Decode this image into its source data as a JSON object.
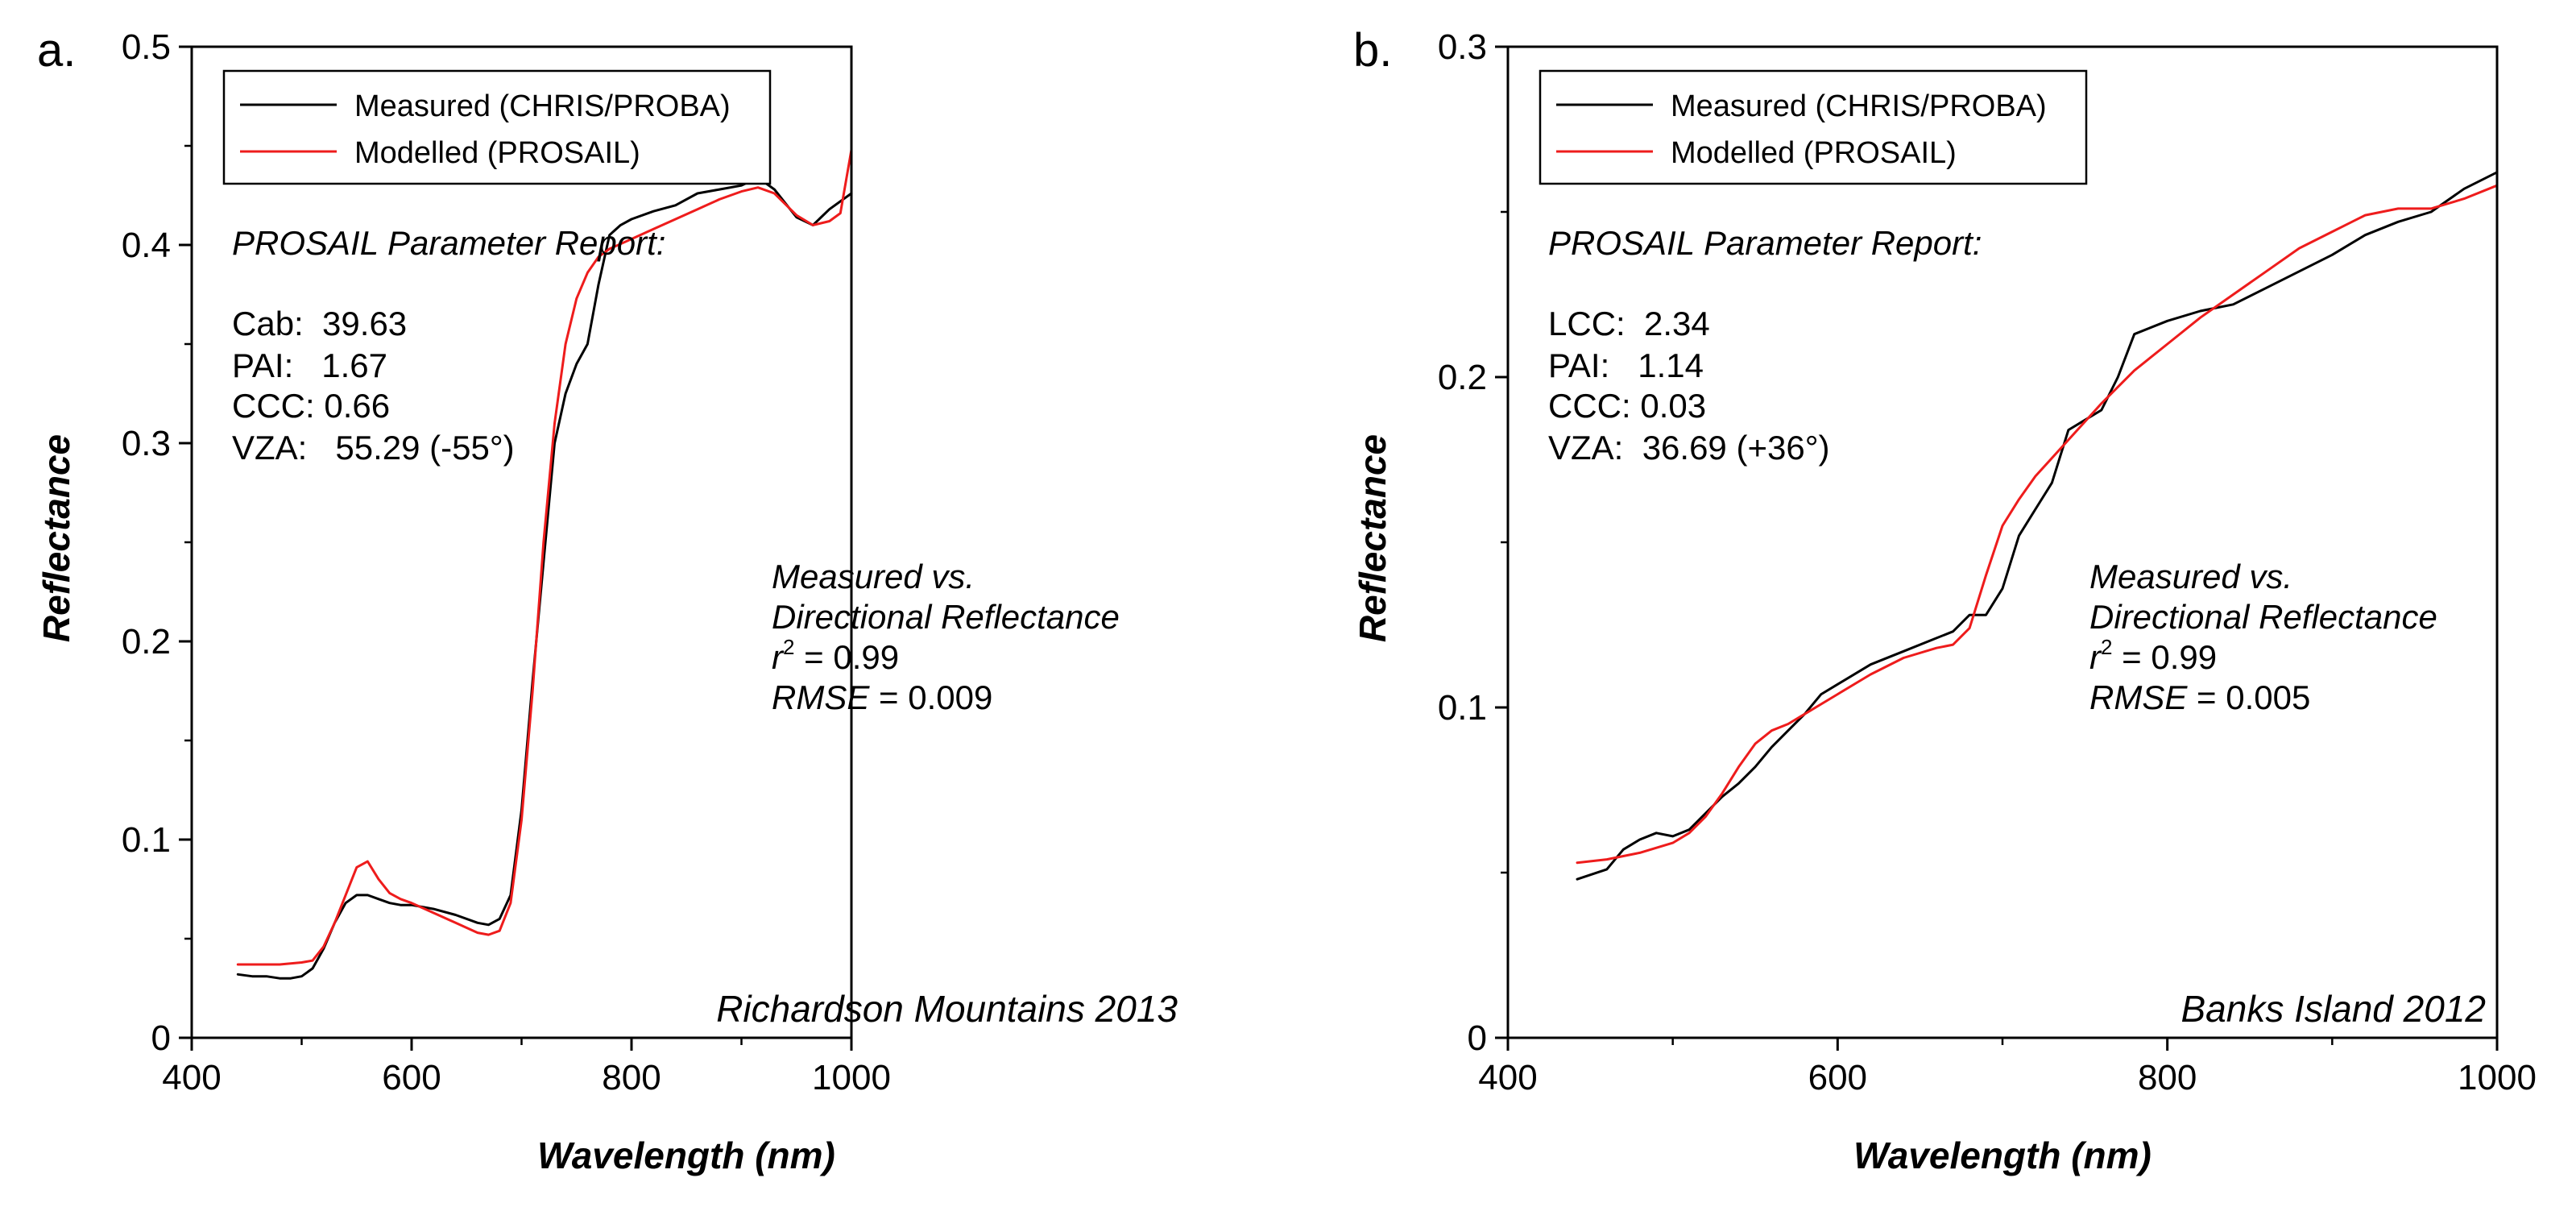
{
  "chart_data": [
    {
      "type": "line",
      "panel": "a.",
      "xlabel": "Wavelength (nm)",
      "ylabel": "Reflectance",
      "xlim": [
        400,
        1000
      ],
      "ylim": [
        0,
        0.5
      ],
      "xticks": [
        "400",
        "600",
        "800",
        "1000"
      ],
      "yticks": [
        "0",
        "0.1",
        "0.2",
        "0.3",
        "0.4",
        "0.5"
      ],
      "legend": [
        "Measured (CHRIS/PROBA)",
        "Modelled (PROSAIL)"
      ],
      "legend_position": "top-left",
      "report": {
        "title": "PROSAIL Parameter Report:",
        "lines": [
          "Cab:  39.63",
          "PAI:   1.67",
          "CCC: 0.66",
          "VZA:   55.29 (-55°)"
        ]
      },
      "stats": {
        "line1": "Measured vs.",
        "line2": "Directional Reflectance",
        "r2_label": "r",
        "r2_sup": "2",
        "r2_value": " = 0.99",
        "rmse_label": "RMSE",
        "rmse_value": " = 0.009"
      },
      "site": "Richardson Mountains 2013",
      "series": [
        {
          "name": "Measured (CHRIS/PROBA)",
          "color": "#000000",
          "x": [
            442,
            455,
            468,
            480,
            490,
            500,
            510,
            520,
            530,
            540,
            550,
            560,
            570,
            580,
            590,
            600,
            620,
            640,
            660,
            670,
            680,
            690,
            700,
            710,
            720,
            730,
            740,
            750,
            760,
            770,
            780,
            790,
            800,
            820,
            840,
            860,
            880,
            900,
            915,
            930,
            950,
            965,
            980,
            1000
          ],
          "values": [
            0.032,
            0.031,
            0.031,
            0.03,
            0.03,
            0.031,
            0.035,
            0.045,
            0.058,
            0.068,
            0.072,
            0.072,
            0.07,
            0.068,
            0.067,
            0.067,
            0.065,
            0.062,
            0.058,
            0.057,
            0.06,
            0.072,
            0.115,
            0.18,
            0.24,
            0.3,
            0.325,
            0.34,
            0.35,
            0.38,
            0.405,
            0.41,
            0.413,
            0.417,
            0.42,
            0.426,
            0.428,
            0.43,
            0.434,
            0.428,
            0.414,
            0.41,
            0.418,
            0.426
          ]
        },
        {
          "name": "Modelled (PROSAIL)",
          "color": "#ee1c1c",
          "x": [
            442,
            460,
            480,
            500,
            510,
            520,
            530,
            540,
            550,
            560,
            570,
            580,
            590,
            600,
            620,
            640,
            660,
            670,
            680,
            690,
            700,
            710,
            720,
            730,
            740,
            750,
            760,
            770,
            780,
            800,
            820,
            840,
            860,
            880,
            900,
            915,
            930,
            950,
            965,
            980,
            990,
            1000
          ],
          "values": [
            0.037,
            0.037,
            0.037,
            0.038,
            0.039,
            0.046,
            0.058,
            0.072,
            0.086,
            0.089,
            0.08,
            0.073,
            0.07,
            0.068,
            0.063,
            0.058,
            0.053,
            0.052,
            0.054,
            0.068,
            0.11,
            0.175,
            0.25,
            0.31,
            0.35,
            0.373,
            0.386,
            0.394,
            0.398,
            0.403,
            0.408,
            0.413,
            0.418,
            0.423,
            0.427,
            0.429,
            0.426,
            0.415,
            0.41,
            0.412,
            0.416,
            0.448
          ]
        }
      ]
    },
    {
      "type": "line",
      "panel": "b.",
      "xlabel": "Wavelength (nm)",
      "ylabel": "Reflectance",
      "xlim": [
        400,
        1000
      ],
      "ylim": [
        0,
        0.3
      ],
      "xticks": [
        "400",
        "600",
        "800",
        "1000"
      ],
      "yticks": [
        "0",
        "0.1",
        "0.2",
        "0.3"
      ],
      "legend": [
        "Measured (CHRIS/PROBA)",
        "Modelled (PROSAIL)"
      ],
      "legend_position": "top-left",
      "report": {
        "title": "PROSAIL Parameter Report:",
        "lines": [
          "LCC:  2.34",
          "PAI:   1.14",
          "CCC: 0.03",
          "VZA:  36.69 (+36°)"
        ]
      },
      "stats": {
        "line1": "Measured vs.",
        "line2": "Directional Reflectance",
        "r2_label": "r",
        "r2_sup": "2",
        "r2_value": " = 0.99",
        "rmse_label": "RMSE",
        "rmse_value": " = 0.005"
      },
      "site": "Banks Island 2012",
      "series": [
        {
          "name": "Measured (CHRIS/PROBA)",
          "color": "#000000",
          "x": [
            442,
            460,
            470,
            480,
            490,
            500,
            510,
            520,
            530,
            540,
            550,
            560,
            570,
            580,
            590,
            600,
            620,
            640,
            660,
            670,
            680,
            690,
            700,
            710,
            720,
            730,
            740,
            750,
            760,
            770,
            780,
            800,
            820,
            840,
            860,
            880,
            900,
            920,
            940,
            960,
            980,
            1000
          ],
          "values": [
            0.048,
            0.051,
            0.057,
            0.06,
            0.062,
            0.061,
            0.063,
            0.068,
            0.073,
            0.077,
            0.082,
            0.088,
            0.093,
            0.098,
            0.104,
            0.107,
            0.113,
            0.117,
            0.121,
            0.123,
            0.128,
            0.128,
            0.136,
            0.152,
            0.16,
            0.168,
            0.184,
            0.187,
            0.19,
            0.2,
            0.213,
            0.217,
            0.22,
            0.222,
            0.227,
            0.232,
            0.237,
            0.243,
            0.247,
            0.25,
            0.257,
            0.262
          ]
        },
        {
          "name": "Modelled (PROSAIL)",
          "color": "#ee1c1c",
          "x": [
            442,
            460,
            480,
            500,
            510,
            520,
            530,
            540,
            550,
            560,
            570,
            580,
            600,
            620,
            640,
            660,
            670,
            680,
            690,
            700,
            710,
            720,
            740,
            760,
            780,
            800,
            820,
            840,
            860,
            880,
            900,
            920,
            940,
            960,
            980,
            1000
          ],
          "values": [
            0.053,
            0.054,
            0.056,
            0.059,
            0.062,
            0.067,
            0.074,
            0.082,
            0.089,
            0.093,
            0.095,
            0.098,
            0.104,
            0.11,
            0.115,
            0.118,
            0.119,
            0.124,
            0.14,
            0.155,
            0.163,
            0.17,
            0.181,
            0.192,
            0.202,
            0.21,
            0.218,
            0.225,
            0.232,
            0.239,
            0.244,
            0.249,
            0.251,
            0.251,
            0.254,
            0.258
          ]
        }
      ]
    }
  ]
}
